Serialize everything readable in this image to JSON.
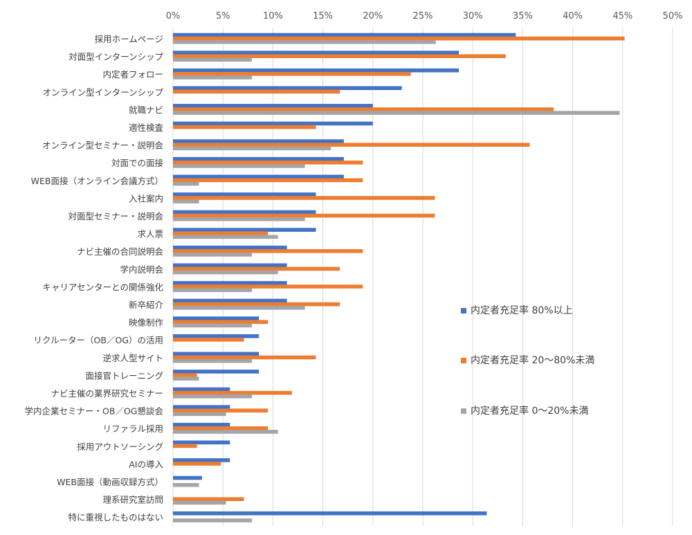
{
  "chart_data": {
    "type": "bar",
    "orientation": "horizontal",
    "title": "",
    "xlabel": "",
    "ylabel": "",
    "xlim": [
      0,
      50
    ],
    "x_tick_labels": [
      "0%",
      "5%",
      "10%",
      "15%",
      "20%",
      "25%",
      "30%",
      "35%",
      "40%",
      "45%",
      "50%"
    ],
    "x_axis_position": "top",
    "grid": "vertical",
    "legend_position": "right",
    "categories": [
      "採用ホームページ",
      "対面型インターンシップ",
      "内定者フォロー",
      "オンライン型インターンシップ",
      "就職ナビ",
      "適性検査",
      "オンライン型セミナー・説明会",
      "対面での面接",
      "WEB面接（オンライン会議方式）",
      "入社案内",
      "対面型セミナー・説明会",
      "求人票",
      "ナビ主催の合同説明会",
      "学内説明会",
      "キャリアセンターとの関係強化",
      "新卒紹介",
      "映像制作",
      "リクルーター（OB／OG）の活用",
      "逆求人型サイト",
      "面接官トレーニング",
      "ナビ主催の業界研究セミナー",
      "学内企業セミナー・OB／OG懇談会",
      "リファラル採用",
      "採用アウトソーシング",
      "AIの導入",
      "WEB面接（動画収録方式）",
      "理系研究室訪問",
      "特に重視したものはない"
    ],
    "series": [
      {
        "name": "内定者充足率 80%以上",
        "color": "#4472C4",
        "values": [
          34.3,
          28.6,
          28.6,
          22.9,
          20.0,
          20.0,
          17.1,
          17.1,
          17.1,
          14.3,
          14.3,
          14.3,
          11.4,
          11.4,
          11.4,
          11.4,
          8.6,
          8.6,
          8.6,
          8.6,
          5.7,
          5.7,
          5.7,
          5.7,
          5.7,
          2.9,
          0,
          31.4
        ]
      },
      {
        "name": "内定者充足率 20〜80%未満",
        "color": "#ED7D31",
        "values": [
          45.2,
          33.3,
          23.8,
          16.7,
          38.1,
          14.3,
          35.7,
          19.0,
          19.0,
          26.2,
          26.2,
          9.5,
          19.0,
          16.7,
          19.0,
          16.7,
          9.5,
          7.1,
          14.3,
          2.4,
          11.9,
          9.5,
          9.5,
          2.4,
          4.8,
          0,
          7.1,
          0
        ]
      },
      {
        "name": "内定者充足率 0〜20%未満",
        "color": "#A5A5A5",
        "values": [
          26.3,
          7.9,
          7.9,
          0,
          44.7,
          0,
          15.8,
          13.2,
          2.6,
          2.6,
          13.2,
          10.5,
          7.9,
          10.5,
          7.9,
          13.2,
          7.9,
          0,
          7.9,
          2.6,
          7.9,
          5.3,
          10.5,
          0,
          0,
          2.6,
          5.3,
          7.9
        ]
      }
    ]
  }
}
